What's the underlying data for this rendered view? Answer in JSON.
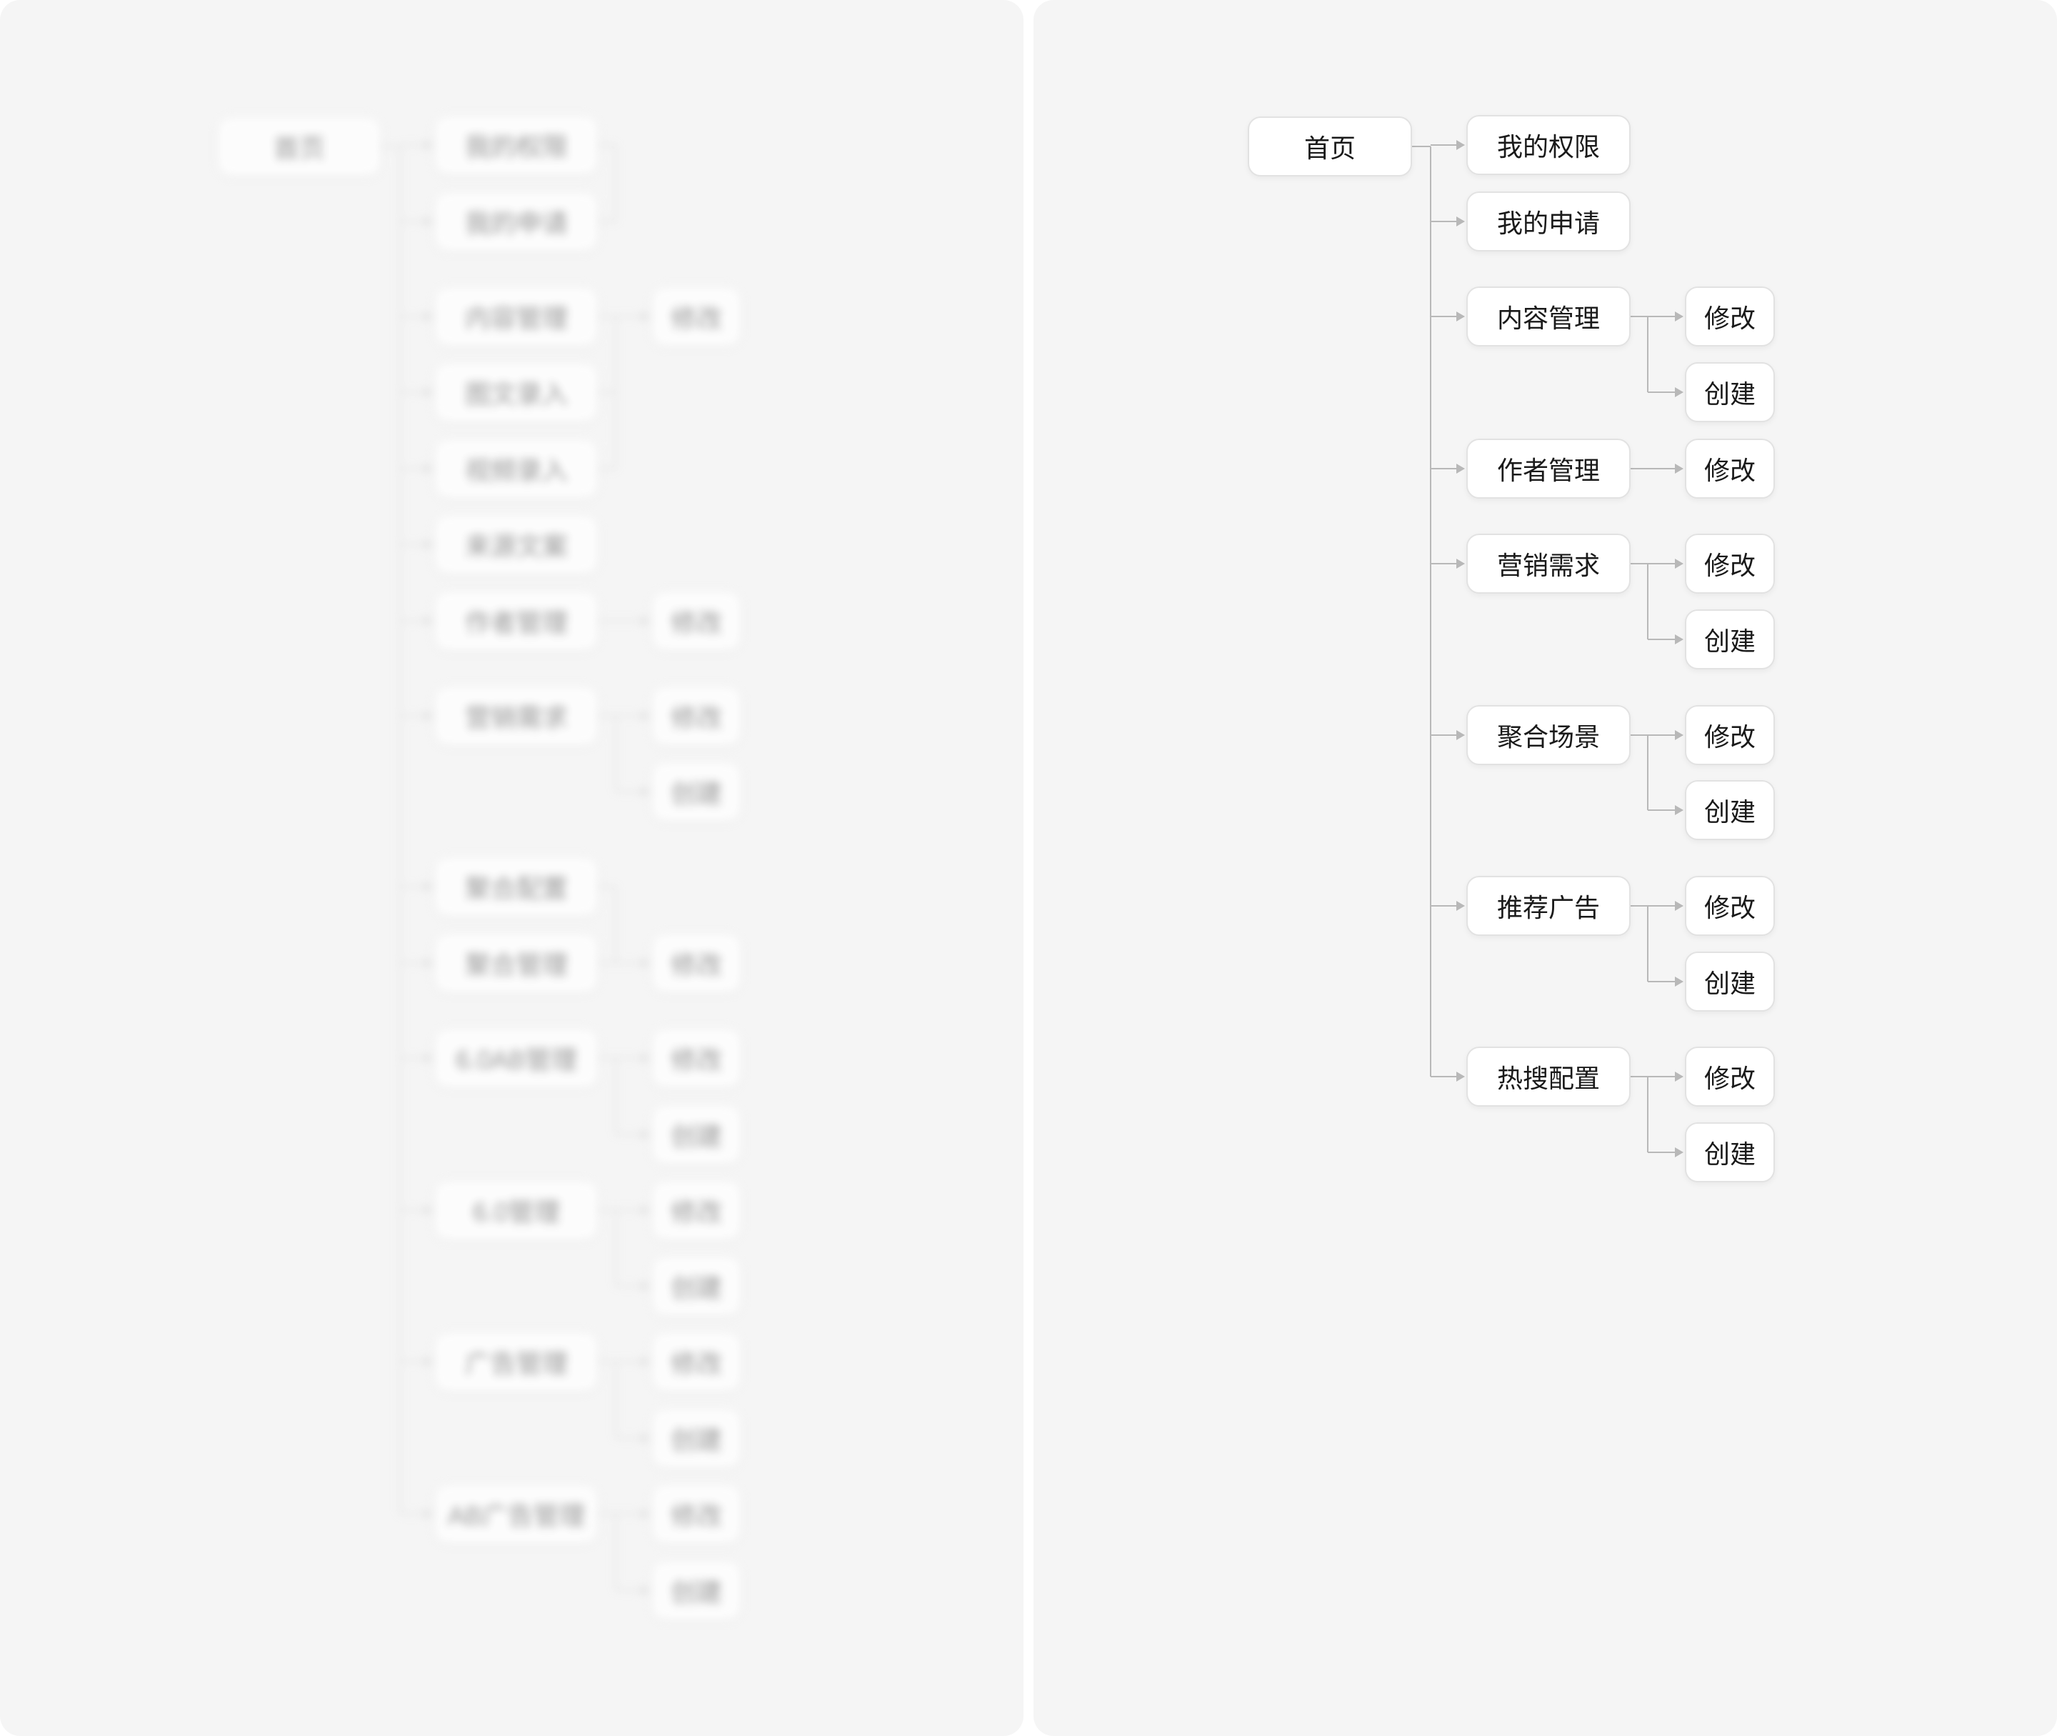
{
  "left_tree": {
    "root": "首页",
    "groups": [
      {
        "items": [
          "我的权限",
          "我的申请"
        ],
        "children": []
      },
      {
        "items": [
          "内容管理",
          "图文录入",
          "视频录入"
        ],
        "children": [
          "修改"
        ]
      },
      {
        "items": [
          "来源文案"
        ],
        "children": []
      },
      {
        "items": [
          "作者管理"
        ],
        "children": [
          "修改"
        ]
      },
      {
        "items": [
          "营销需求"
        ],
        "children": [
          "修改",
          "创建"
        ]
      },
      {
        "items": [
          "聚合配置",
          "聚合管理"
        ],
        "children": [
          "修改"
        ]
      },
      {
        "items": [
          "6.0AB管理"
        ],
        "children": [
          "修改",
          "创建"
        ]
      },
      {
        "items": [
          "6.0管理"
        ],
        "children": [
          "修改",
          "创建"
        ]
      },
      {
        "items": [
          "广告管理"
        ],
        "children": [
          "修改",
          "创建"
        ]
      },
      {
        "items": [
          "AB广告管理"
        ],
        "children": [
          "修改",
          "创建"
        ]
      }
    ]
  },
  "right_tree": {
    "root": "首页",
    "groups": [
      {
        "items": [
          "我的权限"
        ],
        "children": []
      },
      {
        "items": [
          "我的申请"
        ],
        "children": []
      },
      {
        "items": [
          "内容管理"
        ],
        "children": [
          "修改",
          "创建"
        ]
      },
      {
        "items": [
          "作者管理"
        ],
        "children": [
          "修改"
        ]
      },
      {
        "items": [
          "营销需求"
        ],
        "children": [
          "修改",
          "创建"
        ]
      },
      {
        "items": [
          "聚合场景"
        ],
        "children": [
          "修改",
          "创建"
        ]
      },
      {
        "items": [
          "推荐广告"
        ],
        "children": [
          "修改",
          "创建"
        ]
      },
      {
        "items": [
          "热搜配置"
        ],
        "children": [
          "修改",
          "创建"
        ]
      }
    ]
  }
}
